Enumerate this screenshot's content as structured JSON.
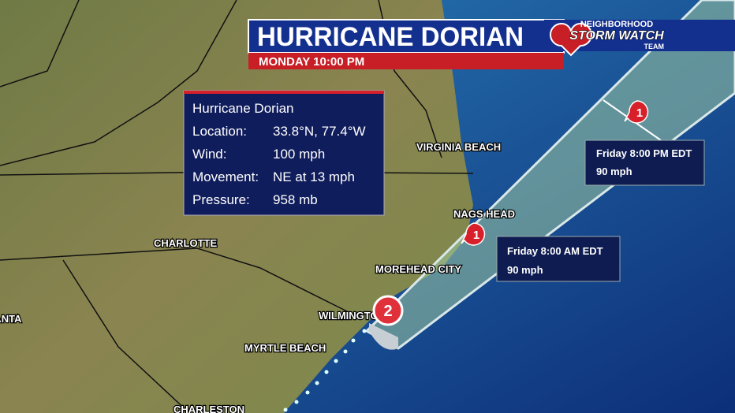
{
  "header": {
    "title": "HURRICANE DORIAN",
    "time": "MONDAY 10:00 PM"
  },
  "logo": {
    "line1": "NEIGHBORHOOD",
    "line2": "STORM WATCH",
    "line3": "TEAM"
  },
  "info": {
    "title": "Hurricane Dorian",
    "rows": [
      {
        "label": "Location:",
        "value": "33.8°N, 77.4°W"
      },
      {
        "label": "Wind:",
        "value": "100 mph"
      },
      {
        "label": "Movement:",
        "value": "NE at 13 mph"
      },
      {
        "label": "Pressure:",
        "value": "958 mb"
      }
    ]
  },
  "forecasts": [
    {
      "time": "Friday 8:00 PM EDT",
      "wind": "90 mph"
    },
    {
      "time": "Friday 8:00 AM EDT",
      "wind": "90 mph"
    }
  ],
  "markers": [
    "1",
    "1",
    "2"
  ],
  "cities": [
    "VIRGINIA BEACH",
    "NAGS HEAD",
    "CHARLOTTE",
    "MOREHEAD CITY",
    "WILMINGTON",
    "MYRTLE BEACH",
    "ATLANTA",
    "CHARLESTON"
  ]
}
